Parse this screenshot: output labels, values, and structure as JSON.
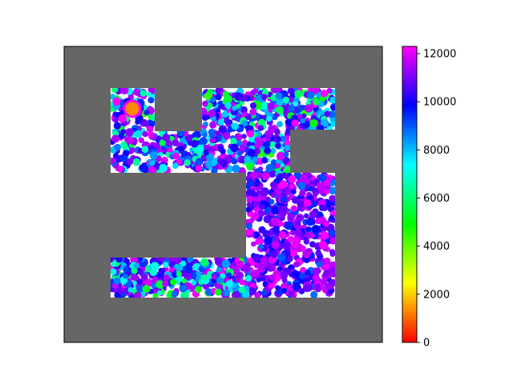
{
  "chart_data": {
    "type": "scatter",
    "title": "",
    "xlabel": "",
    "ylabel": "",
    "axes": {
      "xticks": "hidden",
      "yticks": "hidden",
      "grid": false
    },
    "background_color": "#666666",
    "free_region_color": "#ffffff",
    "colormap": "gist_rainbow_r",
    "colormap_stops": [
      "#ff0000",
      "#ffff00",
      "#00ff00",
      "#00ffff",
      "#0000ff",
      "#ff00ff"
    ],
    "colorbar": {
      "label": "",
      "range": [
        0,
        12300
      ],
      "ticks": [
        "0",
        "2000",
        "4000",
        "6000",
        "8000",
        "10000",
        "12000"
      ]
    },
    "marker": {
      "shape": "circle",
      "highlighted_point_color": "#ff8800"
    },
    "region_description": "U-shaped free corridor with two top arms, a central vertical shaft and a bottom corridor; points colored by visit time",
    "point_count_estimate": 2500
  }
}
